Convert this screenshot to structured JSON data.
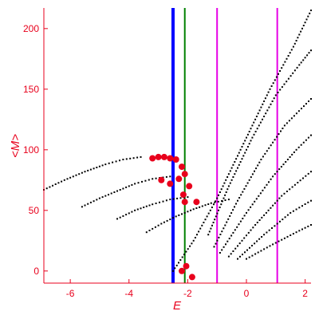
{
  "chart_data": {
    "type": "scatter",
    "title": "",
    "xlabel": "E",
    "ylabel": "<M>",
    "xlim": [
      -6.9,
      2.2
    ],
    "ylim": [
      -10,
      217
    ],
    "xticks": [
      -6,
      -4,
      -2,
      0,
      2
    ],
    "yticks": [
      0,
      50,
      100,
      150,
      200
    ],
    "grid": false,
    "colors": {
      "axes": "#e8001c",
      "dots": "#000000",
      "highlight": "#e8001c",
      "blue_line": "#0000ff",
      "green_line": "#008000",
      "magenta_line": "#e600e6"
    },
    "vertical_lines": [
      {
        "x": -2.5,
        "color": "blue_line"
      },
      {
        "x": -2.1,
        "color": "green_line"
      },
      {
        "x": -1.0,
        "color": "magenta_line"
      },
      {
        "x": 1.05,
        "color": "magenta_line"
      }
    ],
    "series": [
      {
        "points": [
          [
            -6.9,
            67
          ],
          [
            -6.2,
            75
          ],
          [
            -5.5,
            82
          ],
          [
            -4.8,
            88
          ],
          [
            -4.2,
            92
          ],
          [
            -3.6,
            94
          ]
        ]
      },
      {
        "points": [
          [
            -5.6,
            53
          ],
          [
            -5.0,
            60
          ],
          [
            -4.4,
            66
          ],
          [
            -3.8,
            72
          ],
          [
            -3.2,
            76
          ],
          [
            -2.6,
            78
          ]
        ]
      },
      {
        "points": [
          [
            -4.4,
            43
          ],
          [
            -3.8,
            50
          ],
          [
            -3.2,
            55
          ],
          [
            -2.6,
            59
          ],
          [
            -2.0,
            61
          ]
        ]
      },
      {
        "points": [
          [
            -3.4,
            32
          ],
          [
            -2.9,
            39
          ],
          [
            -2.4,
            45
          ],
          [
            -1.8,
            51
          ],
          [
            -1.2,
            56
          ],
          [
            -0.6,
            59
          ]
        ]
      },
      {
        "points": [
          [
            -2.5,
            0
          ],
          [
            -1.8,
            25
          ],
          [
            -1.0,
            60
          ],
          [
            -0.2,
            100
          ],
          [
            0.8,
            150
          ],
          [
            1.6,
            185
          ],
          [
            2.2,
            215
          ]
        ]
      },
      {
        "points": [
          [
            -1.3,
            30
          ],
          [
            -0.6,
            70
          ],
          [
            0.2,
            110
          ],
          [
            1.0,
            145
          ],
          [
            1.8,
            170
          ],
          [
            2.2,
            182
          ]
        ]
      },
      {
        "points": [
          [
            -1.1,
            20
          ],
          [
            -0.3,
            58
          ],
          [
            0.5,
            92
          ],
          [
            1.3,
            120
          ],
          [
            2.2,
            142
          ]
        ]
      },
      {
        "points": [
          [
            -0.9,
            15
          ],
          [
            0.0,
            48
          ],
          [
            0.9,
            78
          ],
          [
            1.7,
            100
          ],
          [
            2.2,
            112
          ]
        ]
      },
      {
        "points": [
          [
            -0.6,
            12
          ],
          [
            0.3,
            38
          ],
          [
            1.2,
            62
          ],
          [
            2.2,
            82
          ]
        ]
      },
      {
        "points": [
          [
            -0.3,
            10
          ],
          [
            0.6,
            30
          ],
          [
            1.5,
            48
          ],
          [
            2.2,
            58
          ]
        ]
      },
      {
        "points": [
          [
            0.0,
            10
          ],
          [
            0.9,
            22
          ],
          [
            1.7,
            32
          ],
          [
            2.2,
            38
          ]
        ]
      }
    ],
    "highlight_points": [
      [
        -3.2,
        93
      ],
      [
        -3.0,
        94
      ],
      [
        -2.8,
        94
      ],
      [
        -2.6,
        93
      ],
      [
        -2.4,
        92
      ],
      [
        -2.2,
        86
      ],
      [
        -2.1,
        80
      ],
      [
        -2.3,
        76
      ],
      [
        -1.95,
        70
      ],
      [
        -2.15,
        63
      ],
      [
        -2.1,
        57
      ],
      [
        -1.7,
        57
      ],
      [
        -2.6,
        72
      ],
      [
        -2.9,
        75
      ],
      [
        -2.05,
        4
      ],
      [
        -1.85,
        -5
      ],
      [
        -2.2,
        0
      ]
    ]
  }
}
